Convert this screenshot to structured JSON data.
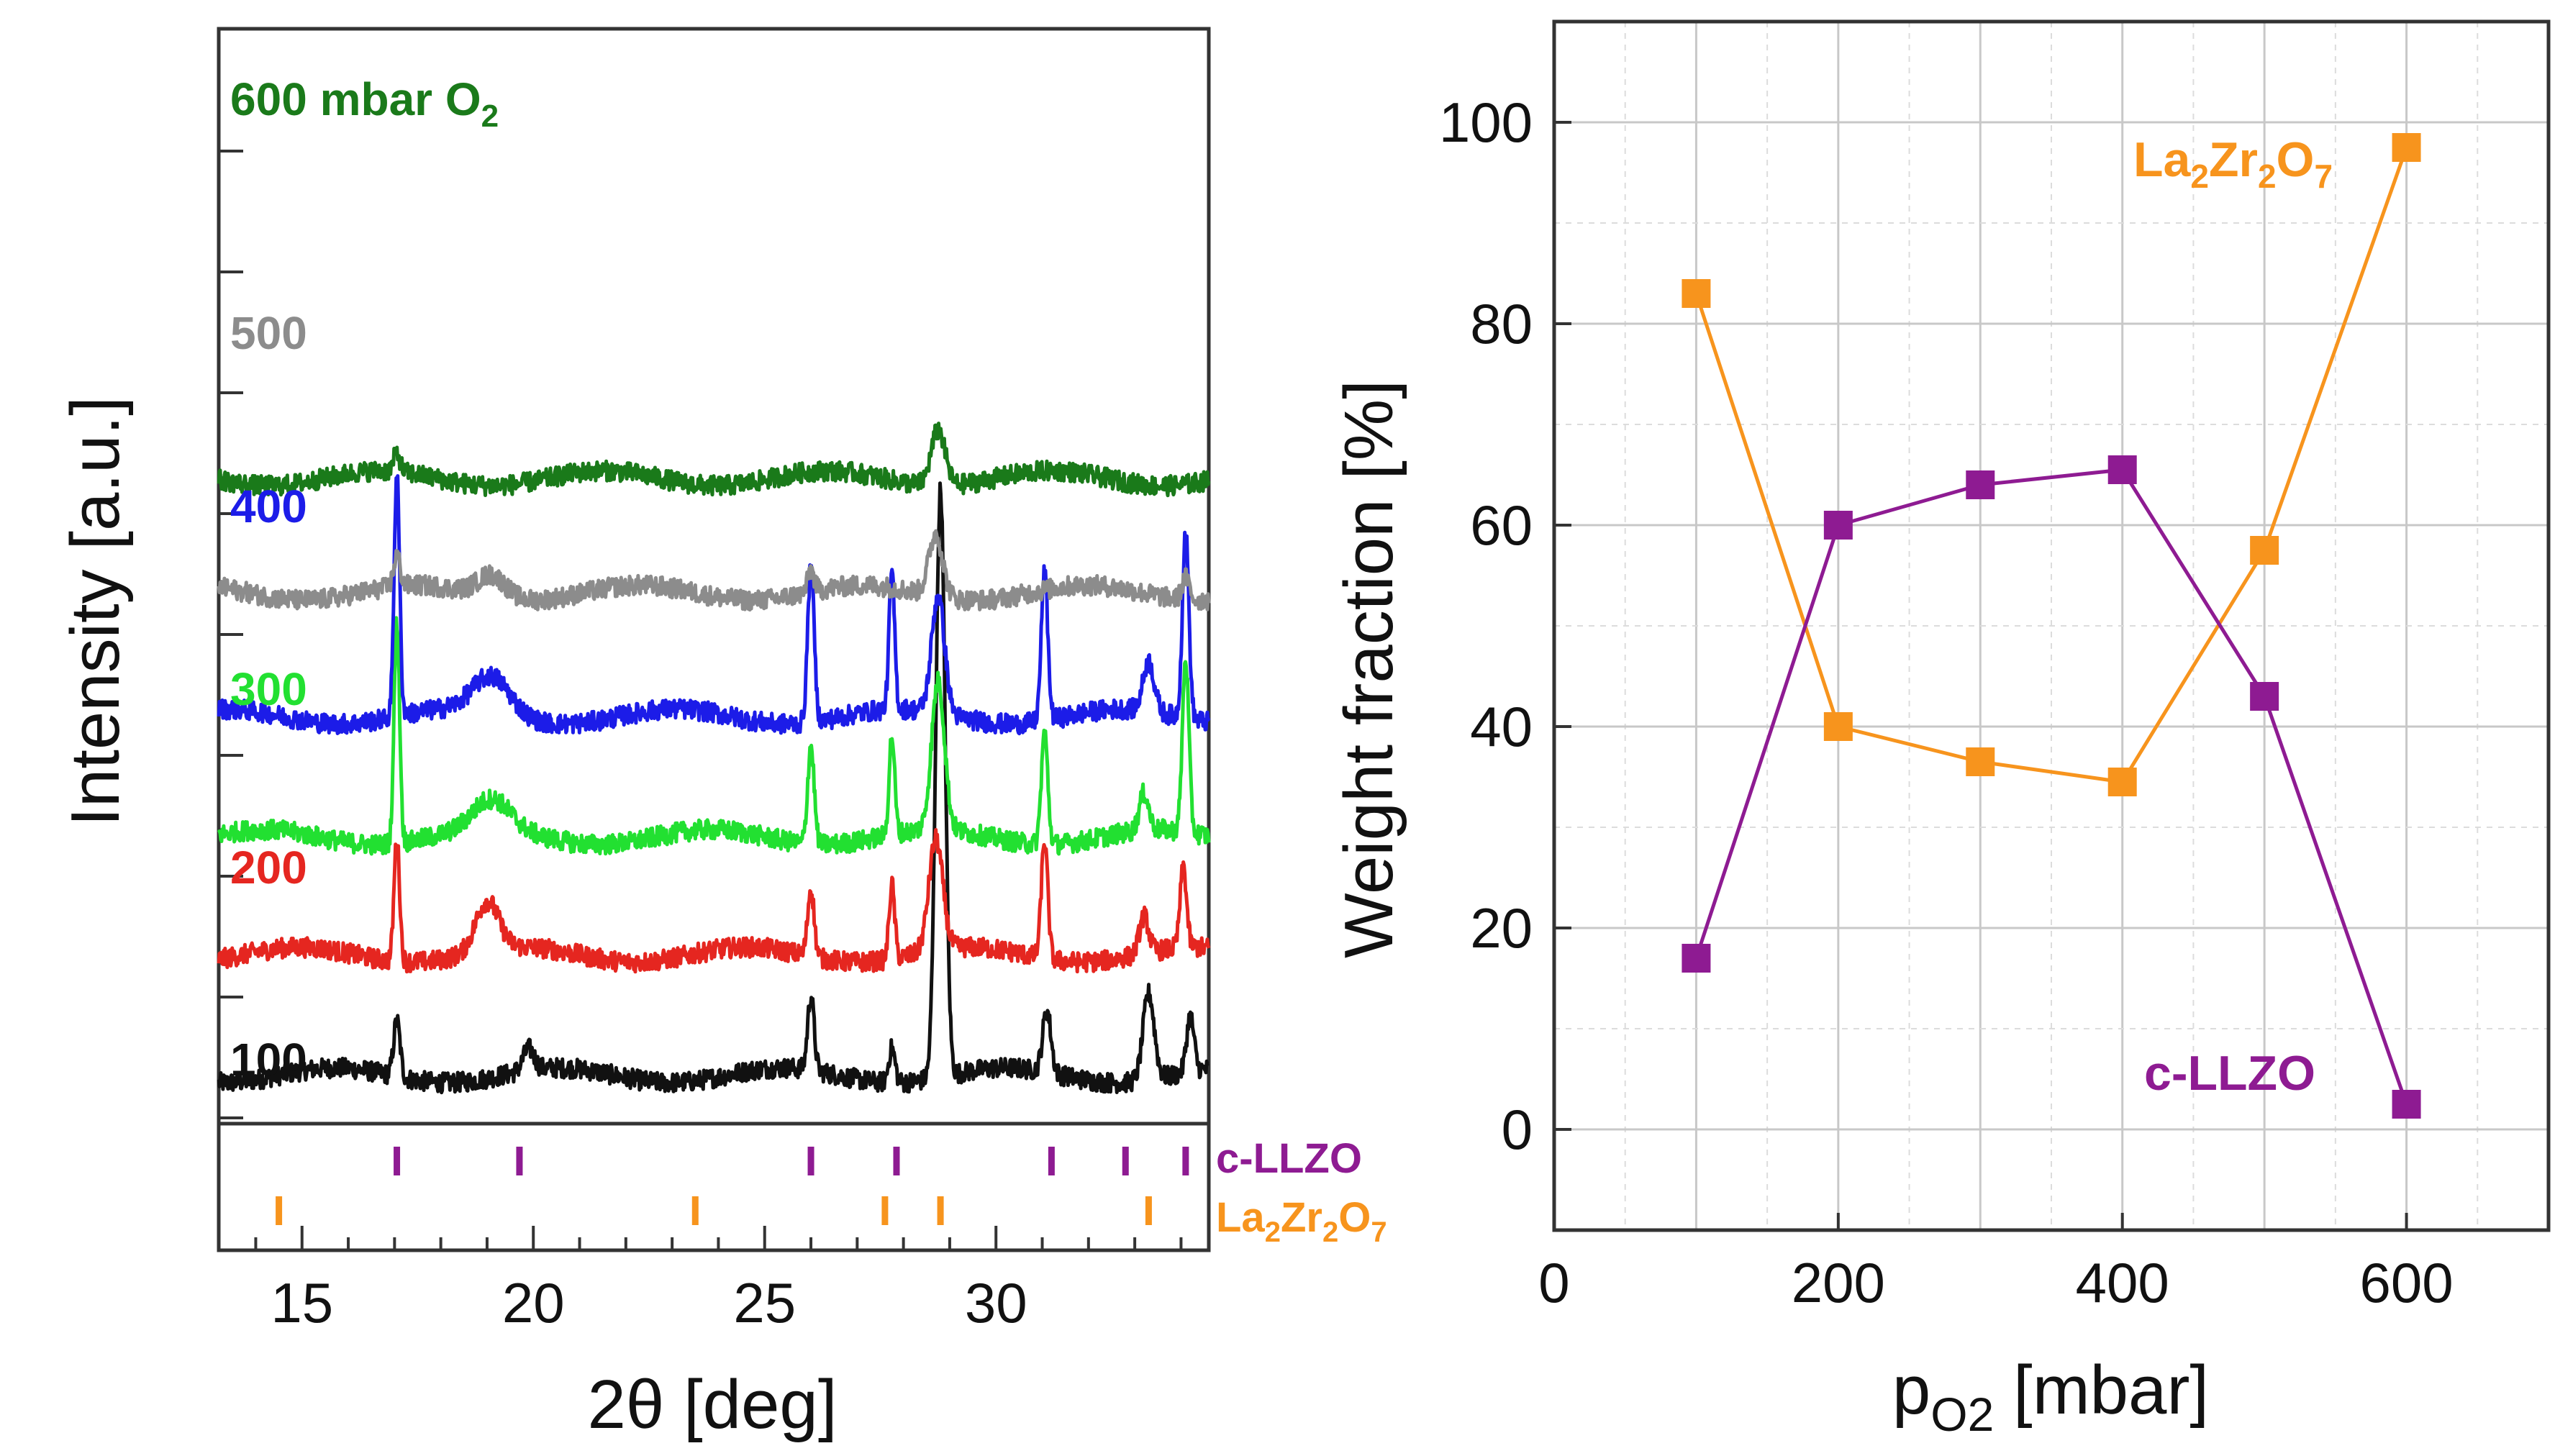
{
  "chart_data": [
    {
      "type": "line",
      "title": "",
      "xlabel": "2θ [deg]",
      "ylabel": "Intensity [a.u.]",
      "xlim": [
        13.2,
        34.6
      ],
      "xticks": [
        "15",
        "20",
        "25",
        "30"
      ],
      "x_tick_values": [
        15,
        20,
        25,
        30
      ],
      "grid": false,
      "series": [
        {
          "name": "100",
          "label": "100",
          "color": "#111111",
          "baseline": 0.7,
          "peaks": [
            [
              17.05,
              0.9,
              0.07
            ],
            [
              19.9,
              0.35,
              0.12
            ],
            [
              26.0,
              1.2,
              0.07
            ],
            [
              27.75,
              0.55,
              0.07
            ],
            [
              28.8,
              9.5,
              0.1
            ],
            [
              31.1,
              1.0,
              0.09
            ],
            [
              33.3,
              1.4,
              0.12
            ],
            [
              34.2,
              0.9,
              0.08
            ]
          ]
        },
        {
          "name": "200",
          "label": "200",
          "color": "#e52620",
          "baseline": 2.65,
          "peaks": [
            [
              17.05,
              2.0,
              0.06
            ],
            [
              19.0,
              0.8,
              0.25
            ],
            [
              26.0,
              1.1,
              0.07
            ],
            [
              27.75,
              1.2,
              0.06
            ],
            [
              28.7,
              1.8,
              0.15
            ],
            [
              31.05,
              1.9,
              0.07
            ],
            [
              33.2,
              0.6,
              0.1
            ],
            [
              34.05,
              1.3,
              0.07
            ]
          ]
        },
        {
          "name": "300",
          "label": "300",
          "color": "#22e031",
          "baseline": 4.55,
          "peaks": [
            [
              17.05,
              3.6,
              0.06
            ],
            [
              19.1,
              0.5,
              0.4
            ],
            [
              26.0,
              1.6,
              0.07
            ],
            [
              27.75,
              1.6,
              0.06
            ],
            [
              28.75,
              2.4,
              0.14
            ],
            [
              31.05,
              1.8,
              0.07
            ],
            [
              33.2,
              0.6,
              0.1
            ],
            [
              34.1,
              2.8,
              0.07
            ]
          ]
        },
        {
          "name": "400",
          "label": "400",
          "color": "#1c1ce8",
          "baseline": 6.5,
          "peaks": [
            [
              17.05,
              3.9,
              0.06
            ],
            [
              19.1,
              0.6,
              0.4
            ],
            [
              26.0,
              2.5,
              0.07
            ],
            [
              27.75,
              2.2,
              0.06
            ],
            [
              28.75,
              1.9,
              0.14
            ],
            [
              31.05,
              2.4,
              0.07
            ],
            [
              33.3,
              0.8,
              0.12
            ],
            [
              34.1,
              3.0,
              0.07
            ]
          ]
        },
        {
          "name": "500",
          "label": "500",
          "color": "#8c8c8c",
          "baseline": 8.5,
          "peaks": [
            [
              17.05,
              0.5,
              0.07
            ],
            [
              19.1,
              0.35,
              0.3
            ],
            [
              26.0,
              0.35,
              0.07
            ],
            [
              28.7,
              1.0,
              0.15
            ],
            [
              34.1,
              0.35,
              0.08
            ]
          ]
        },
        {
          "name": "600 mbar O2",
          "label": "600 mbar O",
          "label_sub": "2",
          "color": "#1a7a1a",
          "baseline": 10.35,
          "peaks": [
            [
              17.05,
              0.3,
              0.07
            ],
            [
              28.75,
              0.9,
              0.15
            ]
          ]
        }
      ],
      "reference_markers": [
        {
          "name": "c-LLZO",
          "color": "#8e1b92",
          "positions": [
            17.05,
            19.7,
            26.0,
            27.85,
            31.2,
            32.8,
            34.1
          ]
        },
        {
          "name": "La2Zr2O7",
          "label": "La",
          "label_parts": [
            "La",
            "2",
            "Zr",
            "2",
            "O",
            "7"
          ],
          "color": "#f7941d",
          "positions": [
            14.5,
            23.5,
            27.6,
            28.8,
            33.3
          ]
        }
      ]
    },
    {
      "type": "line",
      "title": "",
      "xlabel_main": "p",
      "xlabel_sub": "O2",
      "xlabel_rest": " [mbar]",
      "ylabel": "Weight fraction [%]",
      "xlim": [
        0,
        700
      ],
      "ylim": [
        -10,
        110
      ],
      "xticks": [
        "0",
        "200",
        "400",
        "600"
      ],
      "x_tick_values": [
        0,
        200,
        400,
        600
      ],
      "yticks": [
        "0",
        "20",
        "40",
        "60",
        "80",
        "100"
      ],
      "y_tick_values": [
        0,
        20,
        40,
        60,
        80,
        100
      ],
      "grid": true,
      "x": [
        100,
        200,
        300,
        400,
        500,
        600
      ],
      "series": [
        {
          "name": "La2Zr2O7",
          "label_parts": [
            "La",
            "2",
            "Zr",
            "2",
            "O",
            "7"
          ],
          "color": "#f7941d",
          "values": [
            83,
            40,
            36.5,
            34.5,
            57.5,
            97.5
          ]
        },
        {
          "name": "c-LLZO",
          "label": "c-LLZO",
          "color": "#8e1b92",
          "values": [
            17,
            60,
            64,
            65.5,
            43,
            2.5
          ]
        }
      ]
    }
  ]
}
